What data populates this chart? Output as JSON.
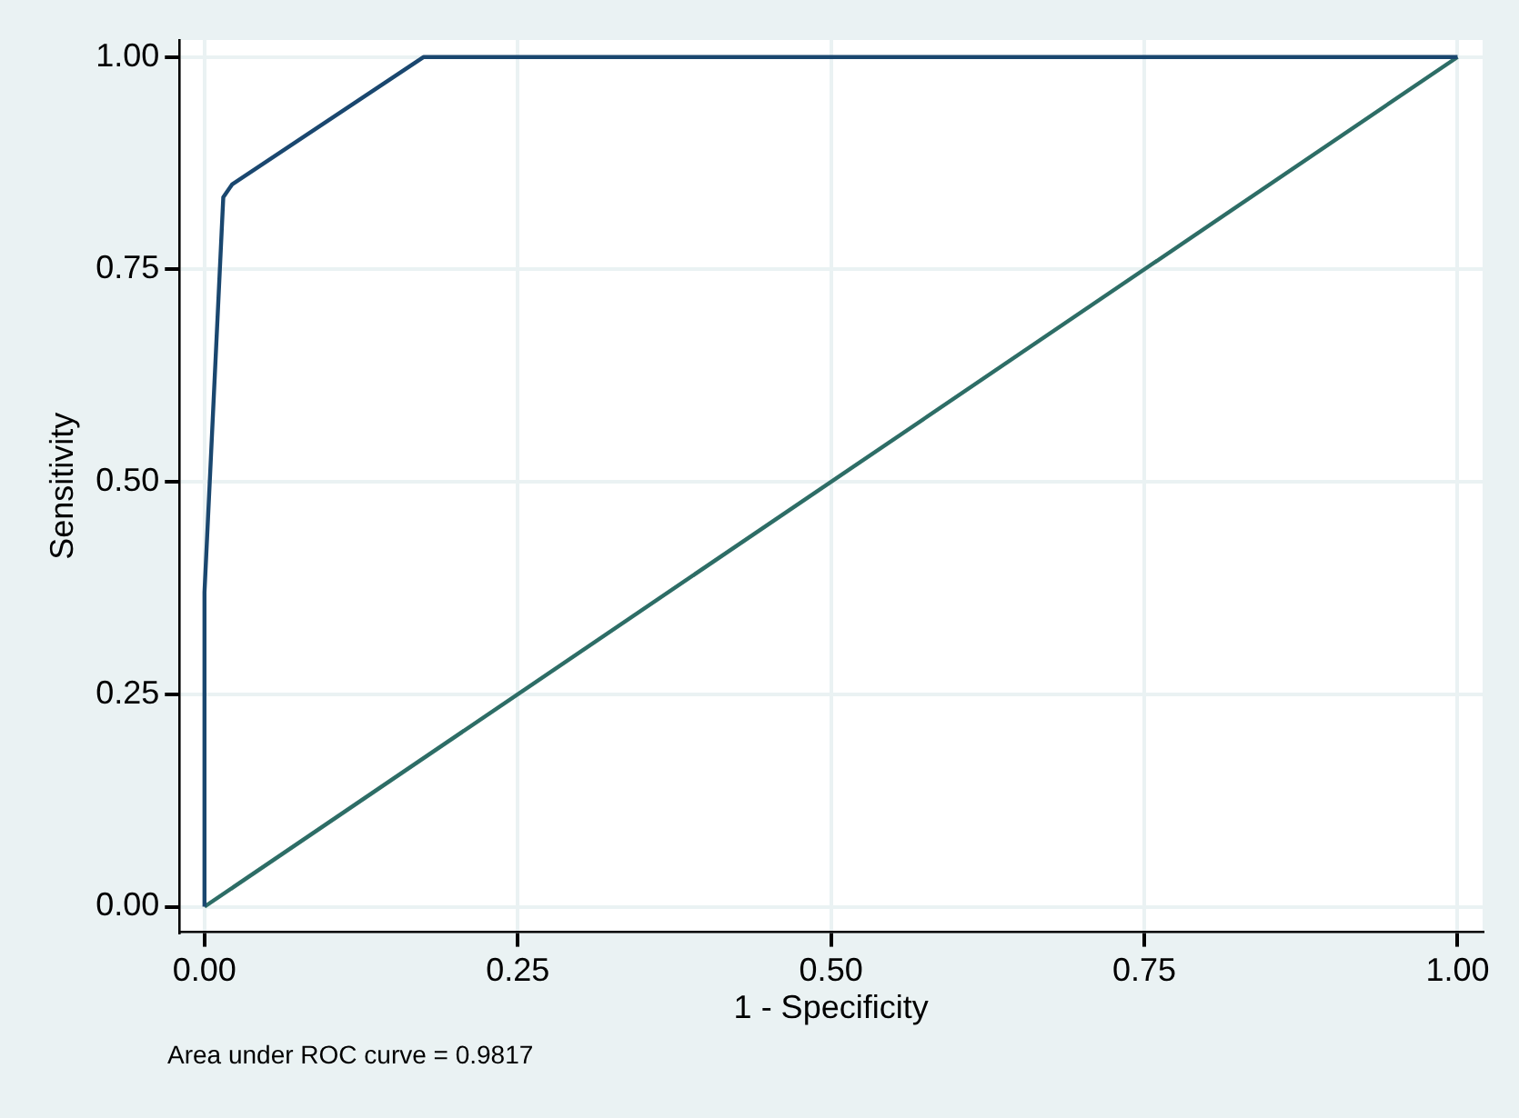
{
  "chart_data": {
    "type": "line",
    "xlabel": "1 - Specificity",
    "ylabel": "Sensitivity",
    "series": [
      {
        "color": "#1a476f",
        "x": [
          0,
          0,
          0.015,
          0.022,
          0.175,
          1
        ],
        "values": [
          0,
          0.37,
          0.835,
          0.85,
          1,
          1
        ]
      },
      {
        "color": "#2d6d66",
        "x": [
          0,
          1
        ],
        "values": [
          0,
          1
        ]
      }
    ],
    "xlim": [
      -0.02,
      1.02
    ],
    "ylim": [
      -0.03,
      1.02
    ],
    "xticks": [
      {
        "value": 0,
        "label": "0.00"
      },
      {
        "value": 0.25,
        "label": "0.25"
      },
      {
        "value": 0.5,
        "label": "0.50"
      },
      {
        "value": 0.75,
        "label": "0.75"
      },
      {
        "value": 1,
        "label": "1.00"
      }
    ],
    "yticks": [
      {
        "value": 0,
        "label": "0.00"
      },
      {
        "value": 0.25,
        "label": "0.25"
      },
      {
        "value": 0.5,
        "label": "0.50"
      },
      {
        "value": 0.75,
        "label": "0.75"
      },
      {
        "value": 1,
        "label": "1.00"
      }
    ],
    "grid": true,
    "legend": false,
    "marker": "none",
    "line_style": "solid",
    "annotations": [
      "Area under ROC curve = 0.9817"
    ]
  }
}
